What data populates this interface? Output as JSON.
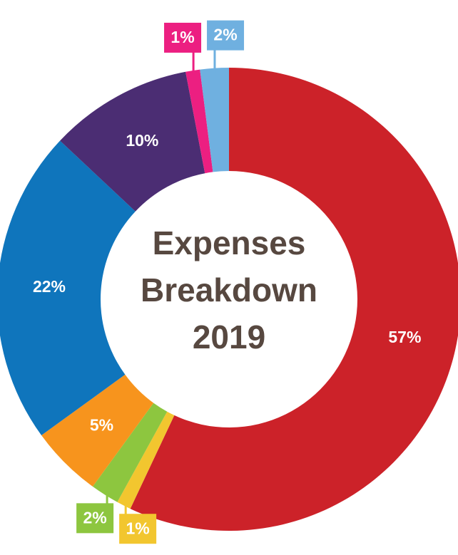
{
  "chart_data": {
    "type": "donut",
    "title": "Expenses Breakdown 2019",
    "categories": [
      null,
      null,
      null,
      null,
      null,
      null,
      null,
      null
    ],
    "values": [
      57,
      1,
      2,
      5,
      22,
      10,
      1,
      2
    ],
    "value_labels": [
      "57%",
      "1%",
      "2%",
      "5%",
      "22%",
      "10%",
      "1%",
      "2%"
    ],
    "colors": [
      "#cc2229",
      "#f2c62f",
      "#8dc63f",
      "#f7941d",
      "#0f75bc",
      "#4b2d73",
      "#ec1f81",
      "#6fb0e0"
    ]
  }
}
